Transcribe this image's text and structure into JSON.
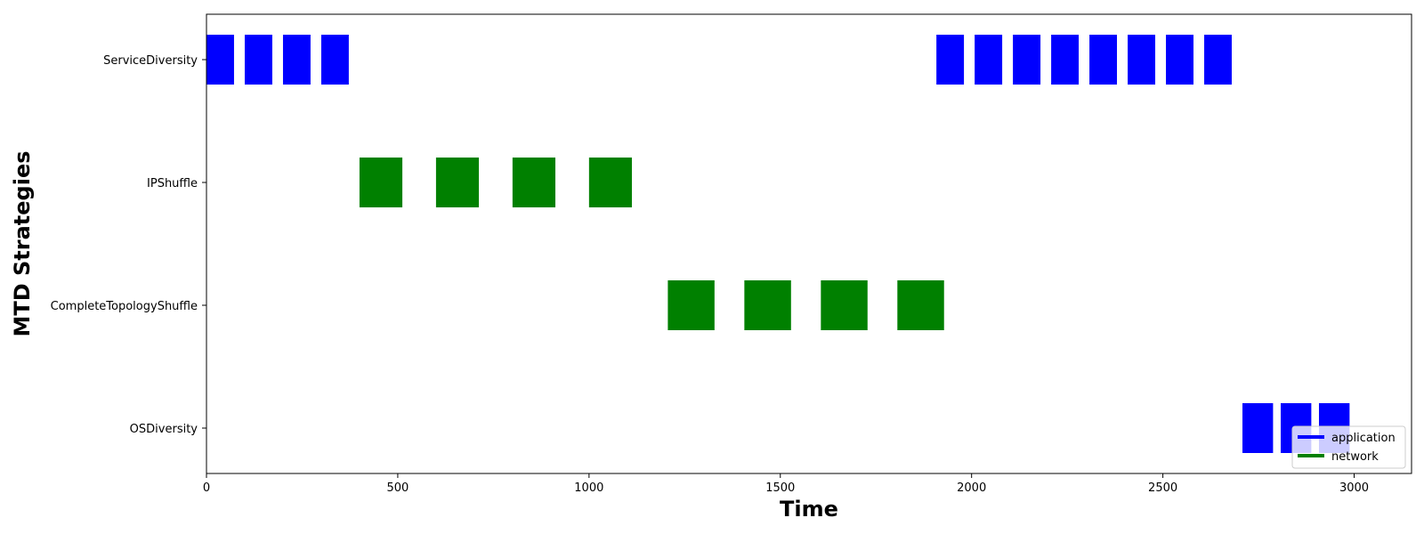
{
  "chart_data": {
    "type": "broken_barh",
    "xlabel": "Time",
    "ylabel": "MTD Strategies",
    "xlim": [
      0,
      3150
    ],
    "xticks": [
      0,
      500,
      1000,
      1500,
      2000,
      2500,
      3000
    ],
    "categories": [
      "ServiceDiversity",
      "IPShuffle",
      "CompleteTopologyShuffle",
      "OSDiversity"
    ],
    "legend": {
      "position": "lower-right",
      "entries": [
        {
          "label": "application",
          "color": "#0000ff"
        },
        {
          "label": "network",
          "color": "#008000"
        }
      ]
    },
    "bars": [
      {
        "row": "ServiceDiversity",
        "type": "application",
        "start": 0,
        "duration": 72
      },
      {
        "row": "ServiceDiversity",
        "type": "application",
        "start": 100,
        "duration": 72
      },
      {
        "row": "ServiceDiversity",
        "type": "application",
        "start": 200,
        "duration": 72
      },
      {
        "row": "ServiceDiversity",
        "type": "application",
        "start": 300,
        "duration": 72
      },
      {
        "row": "ServiceDiversity",
        "type": "application",
        "start": 1908,
        "duration": 72
      },
      {
        "row": "ServiceDiversity",
        "type": "application",
        "start": 2008,
        "duration": 72
      },
      {
        "row": "ServiceDiversity",
        "type": "application",
        "start": 2108,
        "duration": 72
      },
      {
        "row": "ServiceDiversity",
        "type": "application",
        "start": 2208,
        "duration": 72
      },
      {
        "row": "ServiceDiversity",
        "type": "application",
        "start": 2308,
        "duration": 72
      },
      {
        "row": "ServiceDiversity",
        "type": "application",
        "start": 2408,
        "duration": 72
      },
      {
        "row": "ServiceDiversity",
        "type": "application",
        "start": 2508,
        "duration": 72
      },
      {
        "row": "ServiceDiversity",
        "type": "application",
        "start": 2608,
        "duration": 72
      },
      {
        "row": "IPShuffle",
        "type": "network",
        "start": 400,
        "duration": 112
      },
      {
        "row": "IPShuffle",
        "type": "network",
        "start": 600,
        "duration": 112
      },
      {
        "row": "IPShuffle",
        "type": "network",
        "start": 800,
        "duration": 112
      },
      {
        "row": "IPShuffle",
        "type": "network",
        "start": 1000,
        "duration": 112
      },
      {
        "row": "CompleteTopologyShuffle",
        "type": "network",
        "start": 1206,
        "duration": 122
      },
      {
        "row": "CompleteTopologyShuffle",
        "type": "network",
        "start": 1406,
        "duration": 122
      },
      {
        "row": "CompleteTopologyShuffle",
        "type": "network",
        "start": 1606,
        "duration": 122
      },
      {
        "row": "CompleteTopologyShuffle",
        "type": "network",
        "start": 1806,
        "duration": 122
      },
      {
        "row": "OSDiversity",
        "type": "application",
        "start": 2708,
        "duration": 80
      },
      {
        "row": "OSDiversity",
        "type": "application",
        "start": 2808,
        "duration": 80
      },
      {
        "row": "OSDiversity",
        "type": "application",
        "start": 2908,
        "duration": 80
      }
    ]
  }
}
